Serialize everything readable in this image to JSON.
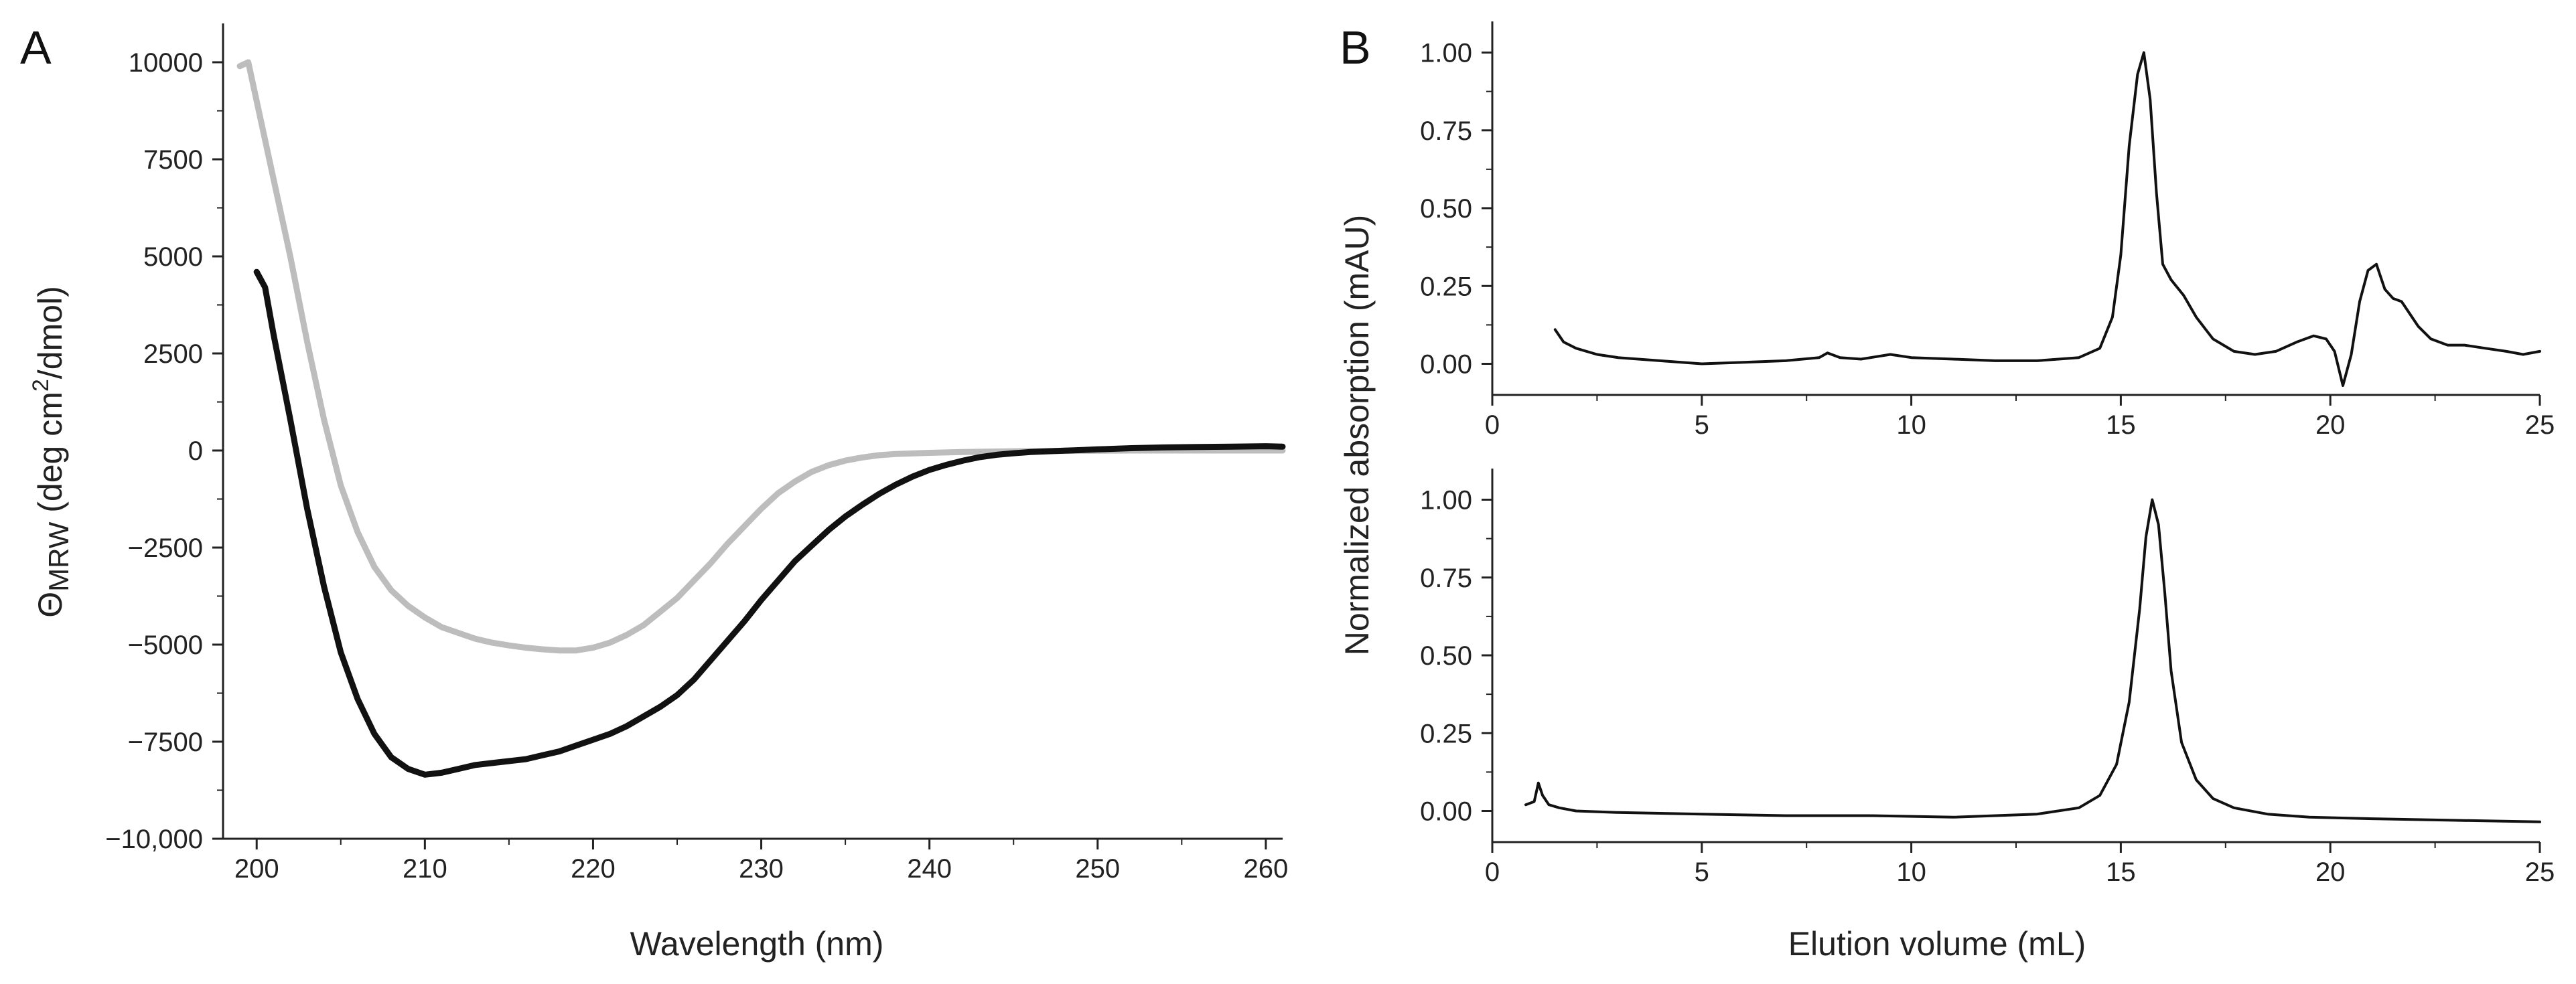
{
  "chart_data": [
    {
      "panel_label": "A",
      "type": "line",
      "title": "",
      "xlabel": "Wavelength (nm)",
      "ylabel_prefix": "Θ",
      "ylabel_sub": "MRW",
      "ylabel_mid": " (deg cm",
      "ylabel_sup": "2",
      "ylabel_end": "/dmol)",
      "xlim": [
        198,
        261
      ],
      "ylim": [
        -10000,
        11000
      ],
      "xticks": [
        200,
        210,
        220,
        230,
        240,
        250,
        260
      ],
      "xtick_labels": [
        "200",
        "210",
        "220",
        "230",
        "240",
        "250",
        "260"
      ],
      "yticks": [
        -10000,
        -7500,
        -5000,
        -2500,
        0,
        2500,
        5000,
        7500,
        10000
      ],
      "ytick_labels": [
        "−10,000",
        "−7500",
        "−5000",
        "−2500",
        "0",
        "2500",
        "5000",
        "7500",
        "10000"
      ],
      "grid": false,
      "series": [
        {
          "name": "gray",
          "color": "#bdbdbd",
          "x": [
            199,
            199.5,
            200,
            201,
            202,
            203,
            204,
            205,
            206,
            207,
            208,
            209,
            210,
            211,
            212,
            213,
            214,
            215,
            216,
            217,
            218,
            219,
            220,
            221,
            222,
            223,
            224,
            225,
            226,
            227,
            228,
            229,
            230,
            231,
            232,
            233,
            234,
            235,
            236,
            237,
            238,
            240,
            242,
            244,
            246,
            248,
            250,
            252,
            255,
            258,
            261
          ],
          "y": [
            9900,
            10000,
            9000,
            7000,
            5000,
            2800,
            800,
            -900,
            -2100,
            -3000,
            -3600,
            -4000,
            -4300,
            -4550,
            -4700,
            -4850,
            -4950,
            -5020,
            -5080,
            -5120,
            -5150,
            -5150,
            -5080,
            -4950,
            -4750,
            -4500,
            -4150,
            -3800,
            -3350,
            -2900,
            -2400,
            -1950,
            -1500,
            -1100,
            -800,
            -550,
            -380,
            -260,
            -180,
            -120,
            -90,
            -60,
            -40,
            -25,
            -15,
            -10,
            -5,
            0,
            0,
            0,
            0
          ]
        },
        {
          "name": "black",
          "color": "#111111",
          "x": [
            200,
            200.5,
            201,
            202,
            203,
            204,
            205,
            206,
            207,
            208,
            209,
            210,
            211,
            212,
            213,
            214,
            215,
            216,
            217,
            218,
            219,
            220,
            221,
            222,
            223,
            224,
            225,
            226,
            227,
            228,
            229,
            230,
            231,
            232,
            233,
            234,
            235,
            236,
            237,
            238,
            239,
            240,
            241,
            242,
            243,
            244,
            245,
            246,
            247,
            248,
            249,
            250,
            252,
            254,
            256,
            258,
            260,
            261
          ],
          "y": [
            4600,
            4200,
            3000,
            800,
            -1500,
            -3500,
            -5200,
            -6400,
            -7300,
            -7900,
            -8200,
            -8350,
            -8300,
            -8200,
            -8100,
            -8050,
            -8000,
            -7950,
            -7850,
            -7750,
            -7600,
            -7450,
            -7300,
            -7100,
            -6850,
            -6600,
            -6300,
            -5900,
            -5400,
            -4900,
            -4400,
            -3850,
            -3350,
            -2850,
            -2450,
            -2050,
            -1700,
            -1400,
            -1120,
            -880,
            -670,
            -500,
            -370,
            -260,
            -170,
            -110,
            -70,
            -40,
            -20,
            -5,
            10,
            30,
            60,
            80,
            90,
            100,
            110,
            100
          ]
        }
      ]
    },
    {
      "panel_label": "B",
      "type": "line",
      "title": "",
      "xlabel": "",
      "ylabel": "",
      "xlim": [
        0,
        25
      ],
      "ylim": [
        -0.1,
        1.1
      ],
      "xticks": [
        0,
        5,
        10,
        15,
        20,
        25
      ],
      "xtick_labels": [
        "0",
        "5",
        "10",
        "15",
        "20",
        "25"
      ],
      "yticks": [
        0,
        0.25,
        0.5,
        0.75,
        1.0
      ],
      "ytick_labels": [
        "0.00",
        "0.25",
        "0.50",
        "0.75",
        "1.00"
      ],
      "grid": false,
      "series": [
        {
          "name": "top trace",
          "color": "#111111",
          "x": [
            1.5,
            1.7,
            2.0,
            2.5,
            3.0,
            4.0,
            5.0,
            6.0,
            7.0,
            7.8,
            8.0,
            8.3,
            8.8,
            9.5,
            10.0,
            11.0,
            12.0,
            13.0,
            14.0,
            14.5,
            14.8,
            15.0,
            15.2,
            15.4,
            15.55,
            15.7,
            15.85,
            16.0,
            16.2,
            16.5,
            16.8,
            17.2,
            17.7,
            18.2,
            18.7,
            19.2,
            19.6,
            19.9,
            20.1,
            20.3,
            20.5,
            20.7,
            20.9,
            21.1,
            21.3,
            21.5,
            21.7,
            21.9,
            22.1,
            22.4,
            22.8,
            23.2,
            23.7,
            24.2,
            24.6,
            25.0
          ],
          "y": [
            0.11,
            0.07,
            0.05,
            0.03,
            0.02,
            0.01,
            0.0,
            0.005,
            0.01,
            0.02,
            0.035,
            0.02,
            0.015,
            0.03,
            0.02,
            0.015,
            0.01,
            0.01,
            0.02,
            0.05,
            0.15,
            0.35,
            0.7,
            0.93,
            1.0,
            0.85,
            0.55,
            0.32,
            0.27,
            0.22,
            0.15,
            0.08,
            0.04,
            0.03,
            0.04,
            0.07,
            0.09,
            0.08,
            0.04,
            -0.07,
            0.03,
            0.2,
            0.3,
            0.32,
            0.24,
            0.21,
            0.2,
            0.16,
            0.12,
            0.08,
            0.06,
            0.06,
            0.05,
            0.04,
            0.03,
            0.04
          ]
        },
        {
          "name": "bottom trace",
          "color": "#111111",
          "x": [
            0.8,
            1.0,
            1.1,
            1.2,
            1.35,
            1.6,
            2.0,
            3.0,
            5.0,
            7.0,
            9.0,
            11.0,
            13.0,
            14.0,
            14.5,
            14.9,
            15.2,
            15.45,
            15.6,
            15.75,
            15.9,
            16.05,
            16.2,
            16.45,
            16.8,
            17.2,
            17.7,
            18.5,
            19.5,
            21.0,
            23.0,
            25.0
          ],
          "y": [
            0.02,
            0.03,
            0.09,
            0.05,
            0.02,
            0.01,
            0.0,
            -0.005,
            -0.01,
            -0.015,
            -0.015,
            -0.02,
            -0.01,
            0.01,
            0.05,
            0.15,
            0.35,
            0.65,
            0.88,
            1.0,
            0.92,
            0.7,
            0.45,
            0.22,
            0.1,
            0.04,
            0.01,
            -0.01,
            -0.02,
            -0.025,
            -0.03,
            -0.035
          ]
        }
      ]
    }
  ],
  "panel_b": {
    "xlabel": "Elution volume (mL)",
    "ylabel": "Normalized absorption (mAU)"
  }
}
